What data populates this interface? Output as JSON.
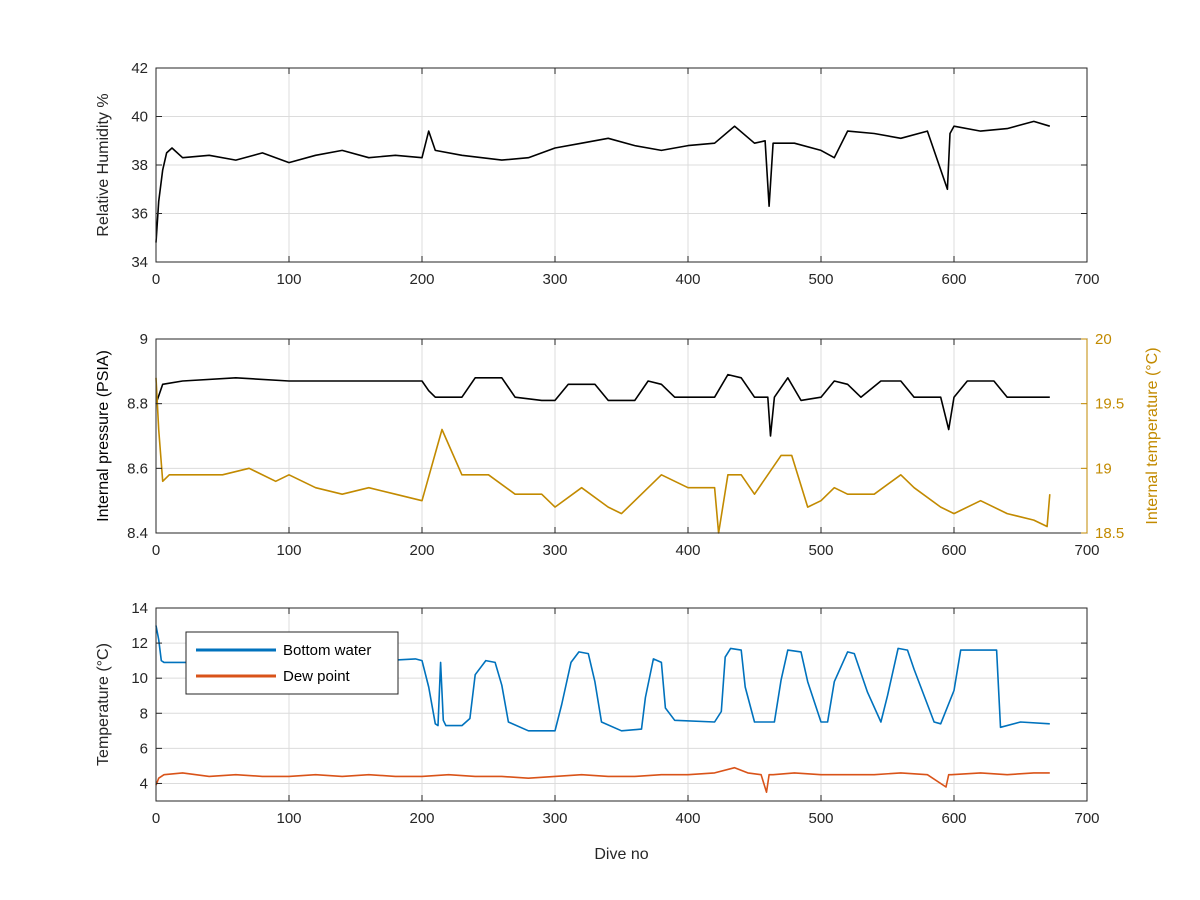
{
  "chart_data": [
    {
      "type": "line",
      "xlabel": "",
      "ylabel": "Relative Humidity %",
      "xlim": [
        0,
        700
      ],
      "ylim": [
        34,
        42
      ],
      "xticks": [
        0,
        100,
        200,
        300,
        400,
        500,
        600,
        700
      ],
      "yticks": [
        34,
        36,
        38,
        40,
        42
      ],
      "grid": true,
      "series": [
        {
          "color": "#000000",
          "x": [
            0,
            2,
            5,
            8,
            12,
            20,
            40,
            60,
            80,
            100,
            120,
            140,
            160,
            180,
            200,
            205,
            210,
            230,
            260,
            280,
            300,
            320,
            340,
            360,
            380,
            400,
            420,
            435,
            450,
            458,
            461,
            464,
            480,
            500,
            510,
            520,
            540,
            560,
            580,
            595,
            597,
            600,
            620,
            640,
            660,
            672
          ],
          "y": [
            34.8,
            36.5,
            37.8,
            38.5,
            38.7,
            38.3,
            38.4,
            38.2,
            38.5,
            38.1,
            38.4,
            38.6,
            38.3,
            38.4,
            38.3,
            39.4,
            38.6,
            38.4,
            38.2,
            38.3,
            38.7,
            38.9,
            39.1,
            38.8,
            38.6,
            38.8,
            38.9,
            39.6,
            38.9,
            39.0,
            36.3,
            38.9,
            38.9,
            38.6,
            38.3,
            39.4,
            39.3,
            39.1,
            39.4,
            37.0,
            39.3,
            39.6,
            39.4,
            39.5,
            39.8,
            39.6
          ]
        }
      ]
    },
    {
      "type": "line",
      "xlabel": "",
      "ylabel": "Internal pressure (PSIA)",
      "y2label": "Internal temperature (°C)",
      "xlim": [
        0,
        700
      ],
      "ylim": [
        8.4,
        9
      ],
      "y2lim": [
        18.5,
        20
      ],
      "xticks": [
        0,
        100,
        200,
        300,
        400,
        500,
        600,
        700
      ],
      "yticks": [
        8.4,
        8.6,
        8.8,
        9
      ],
      "y2ticks": [
        18.5,
        19,
        19.5,
        20
      ],
      "grid": true,
      "series": [
        {
          "axis": "left",
          "color": "#000000",
          "x": [
            0,
            5,
            20,
            60,
            100,
            140,
            180,
            200,
            205,
            210,
            230,
            240,
            260,
            270,
            290,
            300,
            310,
            330,
            340,
            360,
            370,
            380,
            390,
            420,
            430,
            440,
            450,
            460,
            462,
            465,
            475,
            485,
            500,
            510,
            520,
            530,
            545,
            560,
            570,
            590,
            596,
            600,
            610,
            630,
            640,
            672
          ],
          "y": [
            8.8,
            8.86,
            8.87,
            8.88,
            8.87,
            8.87,
            8.87,
            8.87,
            8.84,
            8.82,
            8.82,
            8.88,
            8.88,
            8.82,
            8.81,
            8.81,
            8.86,
            8.86,
            8.81,
            8.81,
            8.87,
            8.86,
            8.82,
            8.82,
            8.89,
            8.88,
            8.82,
            8.82,
            8.7,
            8.82,
            8.88,
            8.81,
            8.82,
            8.87,
            8.86,
            8.82,
            8.87,
            8.87,
            8.82,
            8.82,
            8.72,
            8.82,
            8.87,
            8.87,
            8.82,
            8.82
          ]
        },
        {
          "axis": "right",
          "color": "#C28A00",
          "x": [
            0,
            2,
            5,
            10,
            30,
            50,
            70,
            90,
            100,
            120,
            140,
            160,
            180,
            200,
            215,
            230,
            250,
            270,
            290,
            300,
            320,
            340,
            350,
            360,
            380,
            400,
            420,
            423,
            430,
            440,
            450,
            460,
            470,
            478,
            490,
            500,
            510,
            520,
            540,
            560,
            570,
            590,
            600,
            620,
            640,
            660,
            670,
            672
          ],
          "y": [
            19.7,
            19.3,
            18.9,
            18.95,
            18.95,
            18.95,
            19.0,
            18.9,
            18.95,
            18.85,
            18.8,
            18.85,
            18.8,
            18.75,
            19.3,
            18.95,
            18.95,
            18.8,
            18.8,
            18.7,
            18.85,
            18.7,
            18.65,
            18.75,
            18.95,
            18.85,
            18.85,
            18.5,
            18.95,
            18.95,
            18.8,
            18.95,
            19.1,
            19.1,
            18.7,
            18.75,
            18.85,
            18.8,
            18.8,
            18.95,
            18.85,
            18.7,
            18.65,
            18.75,
            18.65,
            18.6,
            18.55,
            18.8
          ]
        }
      ]
    },
    {
      "type": "line",
      "xlabel": "Dive no",
      "ylabel": "Temperature (°C)",
      "xlim": [
        0,
        700
      ],
      "ylim": [
        3,
        14
      ],
      "xticks": [
        0,
        100,
        200,
        300,
        400,
        500,
        600,
        700
      ],
      "yticks": [
        4,
        6,
        8,
        10,
        12,
        14
      ],
      "grid": true,
      "legend": "top-left",
      "series": [
        {
          "name": "Bottom water",
          "color": "#0072BD",
          "x": [
            0,
            2,
            4,
            6,
            40,
            80,
            120,
            160,
            195,
            200,
            205,
            210,
            212,
            214,
            216,
            218,
            220,
            230,
            236,
            240,
            248,
            255,
            260,
            265,
            280,
            300,
            305,
            312,
            318,
            325,
            330,
            335,
            350,
            365,
            368,
            374,
            380,
            383,
            390,
            420,
            425,
            428,
            432,
            440,
            443,
            450,
            465,
            470,
            475,
            485,
            490,
            500,
            505,
            510,
            520,
            525,
            535,
            545,
            550,
            558,
            565,
            570,
            585,
            590,
            600,
            605,
            632,
            635,
            650,
            672
          ],
          "y": [
            13.0,
            12.2,
            11.0,
            10.9,
            10.9,
            10.95,
            10.9,
            10.95,
            11.1,
            11.0,
            9.5,
            7.4,
            7.3,
            10.9,
            7.6,
            7.3,
            7.3,
            7.3,
            7.7,
            10.2,
            11.0,
            10.9,
            9.6,
            7.5,
            7.0,
            7.0,
            8.5,
            10.9,
            11.5,
            11.4,
            9.8,
            7.5,
            7.0,
            7.1,
            8.9,
            11.1,
            10.9,
            8.3,
            7.6,
            7.5,
            8.1,
            11.2,
            11.7,
            11.6,
            9.5,
            7.5,
            7.5,
            9.9,
            11.6,
            11.5,
            9.8,
            7.5,
            7.5,
            9.8,
            11.5,
            11.4,
            9.2,
            7.5,
            9.0,
            11.7,
            11.6,
            10.5,
            7.5,
            7.4,
            9.3,
            11.6,
            11.6,
            7.2,
            7.5,
            7.4
          ]
        },
        {
          "name": "Dew point",
          "color": "#D95319",
          "x": [
            0,
            2,
            6,
            20,
            40,
            60,
            80,
            100,
            120,
            140,
            160,
            180,
            200,
            220,
            240,
            260,
            280,
            300,
            320,
            340,
            360,
            380,
            400,
            420,
            435,
            445,
            455,
            459,
            461,
            464,
            480,
            500,
            520,
            540,
            560,
            580,
            594,
            596,
            598,
            620,
            640,
            660,
            672
          ],
          "y": [
            3.9,
            4.3,
            4.5,
            4.6,
            4.4,
            4.5,
            4.4,
            4.4,
            4.5,
            4.4,
            4.5,
            4.4,
            4.4,
            4.5,
            4.4,
            4.4,
            4.3,
            4.4,
            4.5,
            4.4,
            4.4,
            4.5,
            4.5,
            4.6,
            4.9,
            4.6,
            4.5,
            3.5,
            4.5,
            4.5,
            4.6,
            4.5,
            4.5,
            4.5,
            4.6,
            4.5,
            3.8,
            4.5,
            4.5,
            4.6,
            4.5,
            4.6,
            4.6
          ]
        }
      ]
    }
  ]
}
